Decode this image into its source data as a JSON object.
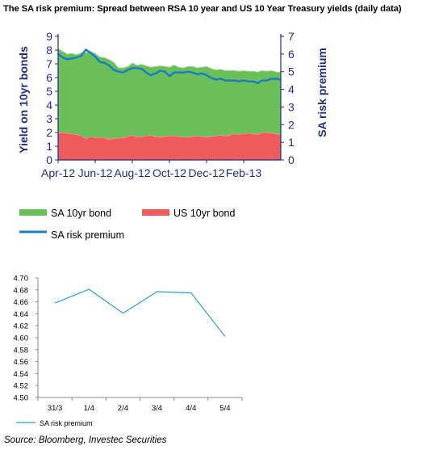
{
  "title": "The SA risk premium:  Spread between RSA 10 year and US 10 Year Treasury yields  (daily data)",
  "source": "Source: Bloomberg, Investec Securities",
  "colors": {
    "sa_bond": "#6BBF59",
    "us_bond": "#EF5B5B",
    "premium": "#1A7EC4",
    "axis": "#1F2D8A",
    "small_line": "#2A9FD6"
  },
  "chart_data": [
    {
      "type": "area",
      "left_ylabel": "Yield on 10yr bonds",
      "right_ylabel": "SA risk premium",
      "left_ylim": [
        0,
        9
      ],
      "right_ylim": [
        0,
        7
      ],
      "left_ticks": [
        "0",
        "1",
        "2",
        "3",
        "4",
        "5",
        "6",
        "7",
        "8",
        "9"
      ],
      "right_ticks": [
        "0",
        "1",
        "2",
        "3",
        "4",
        "5",
        "6",
        "7"
      ],
      "x_tick_labels": [
        "Apr-12",
        "Jun-12",
        "Aug-12",
        "Oct-12",
        "Dec-12",
        "Feb-13"
      ],
      "x_tick_months": [
        0,
        2,
        4,
        6,
        8,
        10
      ],
      "x_range_months": [
        0,
        12
      ],
      "x_months": [
        0,
        0.25,
        0.5,
        0.75,
        1,
        1.25,
        1.5,
        1.75,
        2,
        2.25,
        2.5,
        2.75,
        3,
        3.25,
        3.5,
        3.75,
        4,
        4.25,
        4.5,
        4.75,
        5,
        5.25,
        5.5,
        5.75,
        6,
        6.25,
        6.5,
        6.75,
        7,
        7.25,
        7.5,
        7.75,
        8,
        8.25,
        8.5,
        8.75,
        9,
        9.25,
        9.5,
        9.75,
        10,
        10.25,
        10.5,
        10.75,
        11,
        11.25,
        11.5,
        11.75,
        12
      ],
      "series": [
        {
          "name": "SA 10yr bond",
          "axis": "left",
          "kind": "area",
          "values": [
            8.1,
            7.9,
            7.7,
            7.75,
            7.65,
            7.8,
            7.8,
            7.9,
            7.75,
            7.5,
            7.45,
            7.3,
            7.1,
            6.7,
            6.7,
            6.8,
            7.05,
            6.9,
            6.95,
            6.85,
            6.75,
            6.8,
            6.85,
            6.8,
            6.75,
            6.9,
            6.75,
            6.7,
            6.8,
            6.8,
            6.7,
            6.75,
            6.8,
            6.65,
            6.55,
            6.6,
            6.5,
            6.5,
            6.5,
            6.45,
            6.5,
            6.45,
            6.45,
            6.4,
            6.5,
            6.45,
            6.5,
            6.4,
            6.4
          ]
        },
        {
          "name": "US 10yr bond",
          "axis": "left",
          "kind": "area",
          "values": [
            2.0,
            1.97,
            1.95,
            1.9,
            1.85,
            1.75,
            1.55,
            1.7,
            1.6,
            1.65,
            1.6,
            1.5,
            1.55,
            1.6,
            1.6,
            1.7,
            1.8,
            1.65,
            1.7,
            1.75,
            1.8,
            1.7,
            1.65,
            1.7,
            1.75,
            1.75,
            1.7,
            1.65,
            1.65,
            1.7,
            1.75,
            1.7,
            1.65,
            1.7,
            1.75,
            1.8,
            1.75,
            1.8,
            1.9,
            1.85,
            1.9,
            1.95,
            1.9,
            1.85,
            2.0,
            2.0,
            1.95,
            1.9,
            1.8
          ]
        },
        {
          "name": "SA risk premium",
          "axis": "right",
          "kind": "line",
          "values": [
            6.0,
            5.8,
            5.7,
            5.75,
            5.8,
            5.9,
            6.25,
            6.05,
            5.85,
            5.55,
            5.5,
            5.35,
            5.1,
            5.0,
            4.95,
            5.1,
            5.2,
            5.2,
            5.15,
            4.95,
            4.8,
            4.9,
            5.05,
            5.0,
            4.75,
            4.95,
            4.95,
            4.95,
            5.0,
            4.95,
            4.85,
            4.9,
            4.8,
            4.65,
            4.55,
            4.6,
            4.5,
            4.5,
            4.5,
            4.45,
            4.5,
            4.45,
            4.45,
            4.35,
            4.5,
            4.5,
            4.6,
            4.6,
            4.55
          ]
        }
      ],
      "legend": [
        "SA 10yr bond",
        "US 10yr bond",
        "SA risk premium"
      ],
      "legend_position": "bottom"
    },
    {
      "type": "line",
      "categories": [
        "31/3",
        "1/4",
        "2/4",
        "3/4",
        "4/4",
        "5/4"
      ],
      "ylim": [
        4.5,
        4.7
      ],
      "yticks": [
        "4.50",
        "4.52",
        "4.54",
        "4.56",
        "4.58",
        "4.60",
        "4.62",
        "4.64",
        "4.66",
        "4.68",
        "4.70"
      ],
      "series": [
        {
          "name": "SA risk premium",
          "values": [
            4.658,
            4.681,
            4.641,
            4.677,
            4.675,
            4.602
          ]
        }
      ],
      "legend_position": "bottom-left"
    }
  ]
}
